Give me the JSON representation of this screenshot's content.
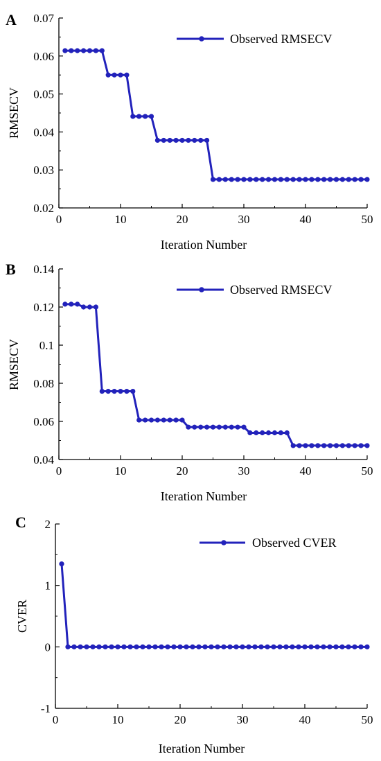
{
  "chart_data": [
    {
      "type": "line",
      "panel_label": "A",
      "xlabel": "Iteration Number",
      "ylabel": "RMSECV",
      "xlim": [
        0,
        50
      ],
      "ylim": [
        0.02,
        0.07
      ],
      "xticks": [
        0,
        10,
        20,
        30,
        40,
        50
      ],
      "yticks": [
        0.02,
        0.03,
        0.04,
        0.05,
        0.06,
        0.07
      ],
      "xtick_labels": [
        "0",
        "10",
        "20",
        "30",
        "40",
        "50"
      ],
      "ytick_labels": [
        "0.02",
        "0.03",
        "0.04",
        "0.05",
        "0.06",
        "0.07"
      ],
      "grid": false,
      "legend_position": "top-right",
      "series": [
        {
          "name": "Observed RMSECV",
          "color": "#2222bb",
          "x": [
            1,
            2,
            3,
            4,
            5,
            6,
            7,
            8,
            9,
            10,
            11,
            12,
            13,
            14,
            15,
            16,
            17,
            18,
            19,
            20,
            21,
            22,
            23,
            24,
            25,
            26,
            27,
            28,
            29,
            30,
            31,
            32,
            33,
            34,
            35,
            36,
            37,
            38,
            39,
            40,
            41,
            42,
            43,
            44,
            45,
            46,
            47,
            48,
            49,
            50
          ],
          "y": [
            0.0614,
            0.0614,
            0.0614,
            0.0614,
            0.0614,
            0.0614,
            0.0614,
            0.055,
            0.055,
            0.055,
            0.055,
            0.0441,
            0.0441,
            0.0441,
            0.0441,
            0.0378,
            0.0378,
            0.0378,
            0.0378,
            0.0378,
            0.0378,
            0.0378,
            0.0378,
            0.0378,
            0.0275,
            0.0275,
            0.0275,
            0.0275,
            0.0275,
            0.0275,
            0.0275,
            0.0275,
            0.0275,
            0.0275,
            0.0275,
            0.0275,
            0.0275,
            0.0275,
            0.0275,
            0.0275,
            0.0275,
            0.0275,
            0.0275,
            0.0275,
            0.0275,
            0.0275,
            0.0275,
            0.0275,
            0.0275,
            0.0275
          ]
        }
      ]
    },
    {
      "type": "line",
      "panel_label": "B",
      "xlabel": "Iteration Number",
      "ylabel": "RMSECV",
      "xlim": [
        0,
        50
      ],
      "ylim": [
        0.04,
        0.14
      ],
      "xticks": [
        0,
        10,
        20,
        30,
        40,
        50
      ],
      "yticks": [
        0.04,
        0.06,
        0.08,
        0.1,
        0.12,
        0.14
      ],
      "xtick_labels": [
        "0",
        "10",
        "20",
        "30",
        "40",
        "50"
      ],
      "ytick_labels": [
        "0.04",
        "0.06",
        "0.08",
        "0.1",
        "0.12",
        "0.14"
      ],
      "grid": false,
      "legend_position": "top-right",
      "series": [
        {
          "name": "Observed RMSECV",
          "color": "#2222bb",
          "x": [
            1,
            2,
            3,
            4,
            5,
            6,
            7,
            8,
            9,
            10,
            11,
            12,
            13,
            14,
            15,
            16,
            17,
            18,
            19,
            20,
            21,
            22,
            23,
            24,
            25,
            26,
            27,
            28,
            29,
            30,
            31,
            32,
            33,
            34,
            35,
            36,
            37,
            38,
            39,
            40,
            41,
            42,
            43,
            44,
            45,
            46,
            47,
            48,
            49,
            50
          ],
          "y": [
            0.1215,
            0.1215,
            0.1215,
            0.12,
            0.12,
            0.12,
            0.0758,
            0.0758,
            0.0758,
            0.0758,
            0.0758,
            0.0758,
            0.0607,
            0.0607,
            0.0607,
            0.0607,
            0.0607,
            0.0607,
            0.0607,
            0.0607,
            0.057,
            0.057,
            0.057,
            0.057,
            0.057,
            0.057,
            0.057,
            0.057,
            0.057,
            0.057,
            0.054,
            0.054,
            0.054,
            0.054,
            0.054,
            0.054,
            0.054,
            0.0473,
            0.0473,
            0.0473,
            0.0473,
            0.0473,
            0.0473,
            0.0473,
            0.0473,
            0.0473,
            0.0473,
            0.0473,
            0.0473,
            0.0473
          ]
        }
      ]
    },
    {
      "type": "line",
      "panel_label": "C",
      "xlabel": "Iteration Number",
      "ylabel": "CVER",
      "xlim": [
        0,
        50
      ],
      "ylim": [
        -1,
        2
      ],
      "xticks": [
        0,
        10,
        20,
        30,
        40,
        50
      ],
      "yticks": [
        -1,
        0,
        1,
        2
      ],
      "xtick_labels": [
        "0",
        "10",
        "20",
        "30",
        "40",
        "50"
      ],
      "ytick_labels": [
        "-1",
        "0",
        "1",
        "2"
      ],
      "grid": false,
      "legend_position": "top-right",
      "series": [
        {
          "name": "Observed CVER",
          "color": "#2222bb",
          "x": [
            1,
            2,
            3,
            4,
            5,
            6,
            7,
            8,
            9,
            10,
            11,
            12,
            13,
            14,
            15,
            16,
            17,
            18,
            19,
            20,
            21,
            22,
            23,
            24,
            25,
            26,
            27,
            28,
            29,
            30,
            31,
            32,
            33,
            34,
            35,
            36,
            37,
            38,
            39,
            40,
            41,
            42,
            43,
            44,
            45,
            46,
            47,
            48,
            49,
            50
          ],
          "y": [
            1.35,
            0,
            0,
            0,
            0,
            0,
            0,
            0,
            0,
            0,
            0,
            0,
            0,
            0,
            0,
            0,
            0,
            0,
            0,
            0,
            0,
            0,
            0,
            0,
            0,
            0,
            0,
            0,
            0,
            0,
            0,
            0,
            0,
            0,
            0,
            0,
            0,
            0,
            0,
            0,
            0,
            0,
            0,
            0,
            0,
            0,
            0,
            0,
            0,
            0
          ]
        }
      ]
    }
  ]
}
